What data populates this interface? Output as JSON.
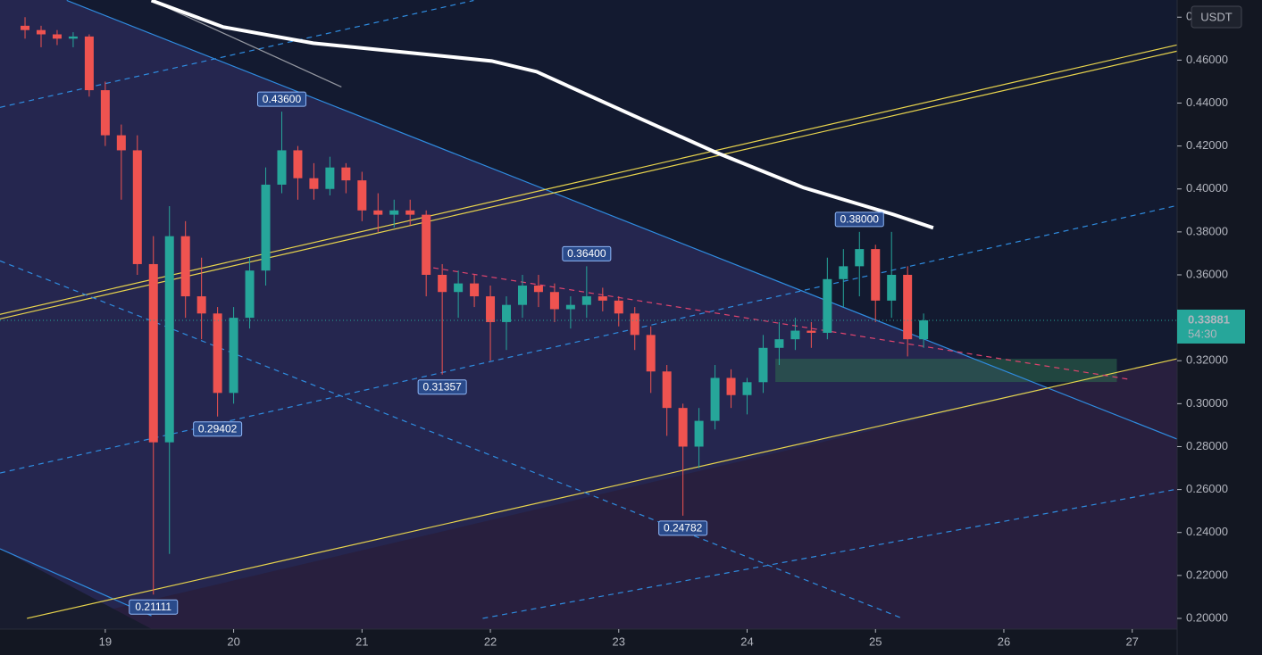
{
  "chart_data": {
    "type": "candlestick",
    "y_unit": "USDT",
    "xlim": [
      18.18,
      27.35
    ],
    "xticks": [
      19,
      20,
      21,
      22,
      23,
      24,
      25,
      26,
      27
    ],
    "ylim": [
      0.195,
      0.488
    ],
    "yticks": [
      {
        "value": 0.2,
        "label": "0.20000"
      },
      {
        "value": 0.22,
        "label": "0.22000"
      },
      {
        "value": 0.24,
        "label": "0.24000"
      },
      {
        "value": 0.26,
        "label": "0.26000"
      },
      {
        "value": 0.28,
        "label": "0.28000"
      },
      {
        "value": 0.3,
        "label": "0.30000"
      },
      {
        "value": 0.32,
        "label": "0.32000"
      },
      {
        "value": 0.34,
        "label": "0.34000"
      },
      {
        "value": 0.36,
        "label": "0.36000"
      },
      {
        "value": 0.38,
        "label": "0.38000"
      },
      {
        "value": 0.4,
        "label": "0.40000"
      },
      {
        "value": 0.42,
        "label": "0.42000"
      },
      {
        "value": 0.44,
        "label": "0.44000"
      },
      {
        "value": 0.46,
        "label": "0.46000"
      },
      {
        "value": 0.48,
        "label": "0.48000"
      }
    ],
    "up_color": "#26a69a",
    "down_color": "#ef5350",
    "x": [
      18.375,
      18.5,
      18.625,
      18.75,
      18.875,
      19.0,
      19.125,
      19.25,
      19.375,
      19.5,
      19.625,
      19.75,
      19.875,
      20.0,
      20.125,
      20.25,
      20.375,
      20.5,
      20.625,
      20.75,
      20.875,
      21.0,
      21.125,
      21.25,
      21.375,
      21.5,
      21.625,
      21.75,
      21.875,
      22.0,
      22.125,
      22.25,
      22.375,
      22.5,
      22.625,
      22.75,
      22.875,
      23.0,
      23.125,
      23.25,
      23.375,
      23.5,
      23.625,
      23.75,
      23.875,
      24.0,
      24.125,
      24.25,
      24.375,
      24.5,
      24.625,
      24.75,
      24.875,
      25.0,
      25.125,
      25.25,
      25.375
    ],
    "open": [
      0.476,
      0.474,
      0.472,
      0.47,
      0.471,
      0.446,
      0.425,
      0.418,
      0.365,
      0.282,
      0.378,
      0.35,
      0.342,
      0.305,
      0.34,
      0.362,
      0.402,
      0.418,
      0.405,
      0.4,
      0.41,
      0.404,
      0.39,
      0.388,
      0.39,
      0.388,
      0.36,
      0.352,
      0.356,
      0.35,
      0.338,
      0.346,
      0.355,
      0.352,
      0.344,
      0.346,
      0.35,
      0.348,
      0.342,
      0.332,
      0.315,
      0.298,
      0.28,
      0.292,
      0.312,
      0.304,
      0.31,
      0.326,
      0.33,
      0.334,
      0.333,
      0.358,
      0.364,
      0.372,
      0.348,
      0.36,
      0.33
    ],
    "high": [
      0.48,
      0.476,
      0.474,
      0.473,
      0.472,
      0.45,
      0.43,
      0.425,
      0.378,
      0.392,
      0.385,
      0.368,
      0.345,
      0.345,
      0.368,
      0.41,
      0.436,
      0.42,
      0.412,
      0.415,
      0.412,
      0.408,
      0.398,
      0.395,
      0.395,
      0.39,
      0.365,
      0.362,
      0.36,
      0.355,
      0.35,
      0.36,
      0.36,
      0.356,
      0.35,
      0.364,
      0.354,
      0.35,
      0.345,
      0.336,
      0.318,
      0.3,
      0.298,
      0.318,
      0.316,
      0.312,
      0.332,
      0.338,
      0.34,
      0.338,
      0.368,
      0.372,
      0.38,
      0.374,
      0.38,
      0.364,
      0.342
    ],
    "low": [
      0.47,
      0.466,
      0.467,
      0.466,
      0.443,
      0.42,
      0.395,
      0.36,
      0.21111,
      0.23,
      0.34,
      0.33,
      0.29402,
      0.3,
      0.335,
      0.355,
      0.398,
      0.395,
      0.395,
      0.397,
      0.398,
      0.385,
      0.38,
      0.382,
      0.383,
      0.35,
      0.31357,
      0.34,
      0.345,
      0.32,
      0.325,
      0.34,
      0.345,
      0.338,
      0.335,
      0.34,
      0.343,
      0.336,
      0.325,
      0.305,
      0.285,
      0.24782,
      0.27,
      0.288,
      0.298,
      0.295,
      0.305,
      0.318,
      0.325,
      0.326,
      0.33,
      0.345,
      0.35,
      0.338,
      0.34,
      0.322,
      0.326
    ],
    "close": [
      0.474,
      0.472,
      0.47,
      0.471,
      0.446,
      0.425,
      0.418,
      0.365,
      0.282,
      0.378,
      0.35,
      0.342,
      0.305,
      0.34,
      0.362,
      0.402,
      0.418,
      0.405,
      0.4,
      0.41,
      0.404,
      0.39,
      0.388,
      0.39,
      0.388,
      0.36,
      0.352,
      0.356,
      0.35,
      0.338,
      0.346,
      0.355,
      0.352,
      0.344,
      0.346,
      0.35,
      0.348,
      0.342,
      0.332,
      0.315,
      0.298,
      0.28,
      0.292,
      0.312,
      0.304,
      0.31,
      0.326,
      0.33,
      0.334,
      0.333,
      0.358,
      0.364,
      0.372,
      0.348,
      0.36,
      0.33,
      0.33881
    ],
    "annotations": [
      {
        "x": 20.375,
        "y": 0.436,
        "label": "0.43600"
      },
      {
        "x": 19.875,
        "y": 0.29402,
        "label": "0.29402"
      },
      {
        "x": 21.625,
        "y": 0.31357,
        "label": "0.31357"
      },
      {
        "x": 22.75,
        "y": 0.364,
        "label": "0.36400"
      },
      {
        "x": 23.5,
        "y": 0.24782,
        "label": "0.24782"
      },
      {
        "x": 19.375,
        "y": 0.21111,
        "label": "0.21111"
      },
      {
        "x": 24.875,
        "y": 0.38,
        "label": "0.38000"
      }
    ],
    "last_price": {
      "value": 0.33881,
      "label": "0.33881",
      "countdown": "54:30"
    },
    "drawings": [
      {
        "color": "#2f8ce0",
        "dash": false,
        "points": [
          [
            18.7,
            0.4878
          ],
          [
            27.35,
            0.2835
          ]
        ]
      },
      {
        "color": "#2f8ce0",
        "dash": false,
        "points": [
          [
            18.18,
            0.2324
          ],
          [
            19.36,
            0.2012
          ]
        ]
      },
      {
        "color": "#e8d44d",
        "dash": false,
        "points": [
          [
            18.18,
            0.3416
          ],
          [
            27.35,
            0.4671
          ]
        ]
      },
      {
        "color": "#e8d44d",
        "dash": false,
        "points": [
          [
            18.18,
            0.3395
          ],
          [
            27.35,
            0.4642
          ]
        ]
      },
      {
        "color": "#e8d44d",
        "dash": false,
        "points": [
          [
            18.39,
            0.2
          ],
          [
            27.35,
            0.3209
          ]
        ]
      },
      {
        "color": "#2f8ce0",
        "dash": true,
        "points": [
          [
            18.18,
            0.438
          ],
          [
            21.87,
            0.4878
          ]
        ]
      },
      {
        "color": "#2f8ce0",
        "dash": true,
        "points": [
          [
            18.18,
            0.2677
          ],
          [
            27.35,
            0.3923
          ]
        ]
      },
      {
        "color": "#2f8ce0",
        "dash": true,
        "points": [
          [
            18.18,
            0.3665
          ],
          [
            25.21,
            0.2
          ]
        ]
      },
      {
        "color": "#2f8ce0",
        "dash": true,
        "points": [
          [
            21.94,
            0.2
          ],
          [
            27.35,
            0.2602
          ]
        ]
      },
      {
        "color": "#9598a1",
        "dash": false,
        "points": [
          [
            19.36,
            0.4878
          ],
          [
            20.84,
            0.4475
          ]
        ]
      },
      {
        "color": "#e0446e",
        "dash": true,
        "points": [
          [
            21.48,
            0.364
          ],
          [
            26.98,
            0.3113
          ]
        ]
      },
      {
        "color": "#ffffff",
        "dash": false,
        "width": 4,
        "points": [
          [
            19.36,
            0.4878
          ],
          [
            19.92,
            0.4754
          ],
          [
            20.62,
            0.4679
          ],
          [
            21.31,
            0.4638
          ],
          [
            22.01,
            0.4596
          ],
          [
            22.36,
            0.4546
          ],
          [
            23.05,
            0.4359
          ],
          [
            23.75,
            0.4172
          ],
          [
            24.44,
            0.4006
          ],
          [
            25.14,
            0.3881
          ],
          [
            25.45,
            0.3819
          ]
        ]
      }
    ],
    "zone": {
      "color": "#2e6b4f",
      "x": [
        24.22,
        26.88
      ],
      "y": [
        0.3101,
        0.3209
      ]
    }
  }
}
